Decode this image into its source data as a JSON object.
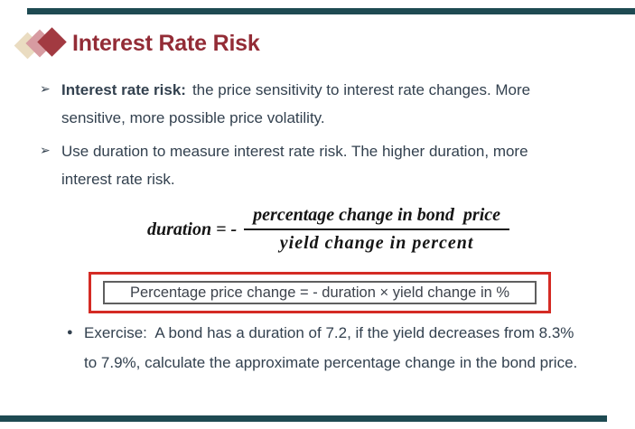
{
  "slide": {
    "title": "Interest Rate Risk",
    "colors": {
      "title_red": "#932C36",
      "bar_teal": "#1E4A52",
      "body_text_slate": "#33414F",
      "highlight_border_red": "#D42B24",
      "inner_border_gray": "#5F5F5F",
      "diamond_beige": "#EADCC1",
      "diamond_pink": "#D79BA1",
      "diamond_red": "#A23A41"
    },
    "bullets": [
      {
        "marker": "➢",
        "lead": "Interest rate risk:",
        "line1": "the price sensitivity to interest rate changes. More",
        "line2": "sensitive, more possible price volatility."
      },
      {
        "marker": "➢",
        "lead": "",
        "line1": "Use duration to measure interest rate risk. The higher duration, more",
        "line2": "interest rate risk."
      }
    ],
    "formula": {
      "lhs": "duration = -",
      "numerator": "percentage change in bond  price",
      "denominator": "yield change in percent"
    },
    "highlight_box": {
      "text": "Percentage price change = - duration × yield change in %"
    },
    "exercise": {
      "marker": "●",
      "line1": "Exercise:  A bond has a duration of 7.2, if the yield decreases from 8.3%",
      "line2": "to 7.9%, calculate the approximate percentage change in the bond price."
    }
  }
}
